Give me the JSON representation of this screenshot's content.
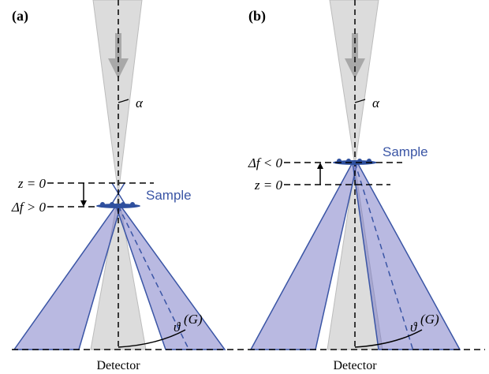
{
  "panels": [
    {
      "label": "(a)",
      "alpha": "α",
      "z_label": "z = 0",
      "df_label": "Δf > 0",
      "sample": "Sample",
      "theta": "ϑ",
      "theta_sup": "(G)",
      "detector": "Detector"
    },
    {
      "label": "(b)",
      "alpha": "α",
      "z_label": "z = 0",
      "df_label": "Δf < 0",
      "sample": "Sample",
      "theta": "ϑ",
      "theta_sup": "(G)",
      "detector": "Detector"
    }
  ]
}
